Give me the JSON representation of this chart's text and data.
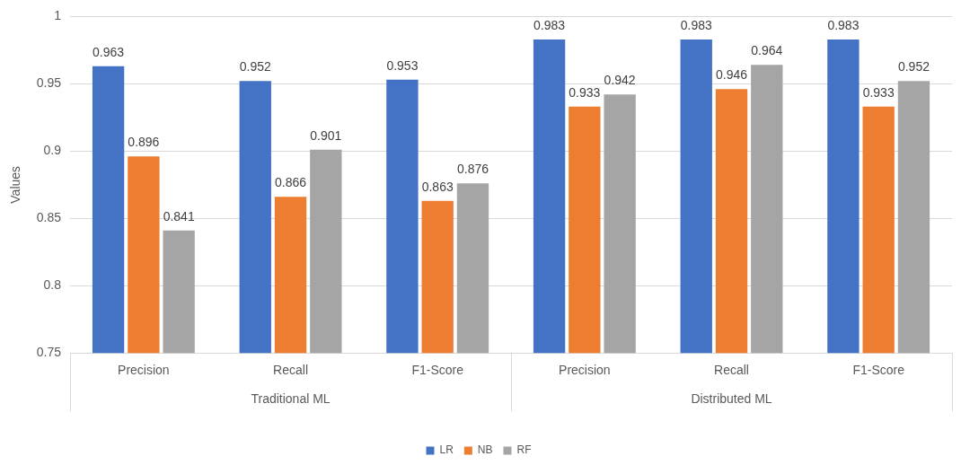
{
  "chart_data": {
    "type": "bar",
    "ylabel": "Values",
    "categories": [
      "Precision",
      "Recall",
      "F1-Score",
      "Precision",
      "Recall",
      "F1-Score"
    ],
    "series": [
      {
        "name": "LR",
        "color": "#4472c4",
        "values": [
          0.963,
          0.952,
          0.953,
          0.983,
          0.983,
          0.983
        ]
      },
      {
        "name": "NB",
        "color": "#ed7d31",
        "values": [
          0.896,
          0.866,
          0.863,
          0.933,
          0.946,
          0.933
        ]
      },
      {
        "name": "RF",
        "color": "#a5a5a5",
        "values": [
          0.841,
          0.901,
          0.876,
          0.942,
          0.964,
          0.952
        ]
      }
    ],
    "ylim": [
      0.75,
      1
    ],
    "yticks": [
      0.75,
      0.8,
      0.85,
      0.9,
      0.95,
      1
    ],
    "grid": "y",
    "legend": "bottom",
    "data_labels": true,
    "annotations": [
      "Traditional ML",
      "Distributed ML"
    ]
  }
}
